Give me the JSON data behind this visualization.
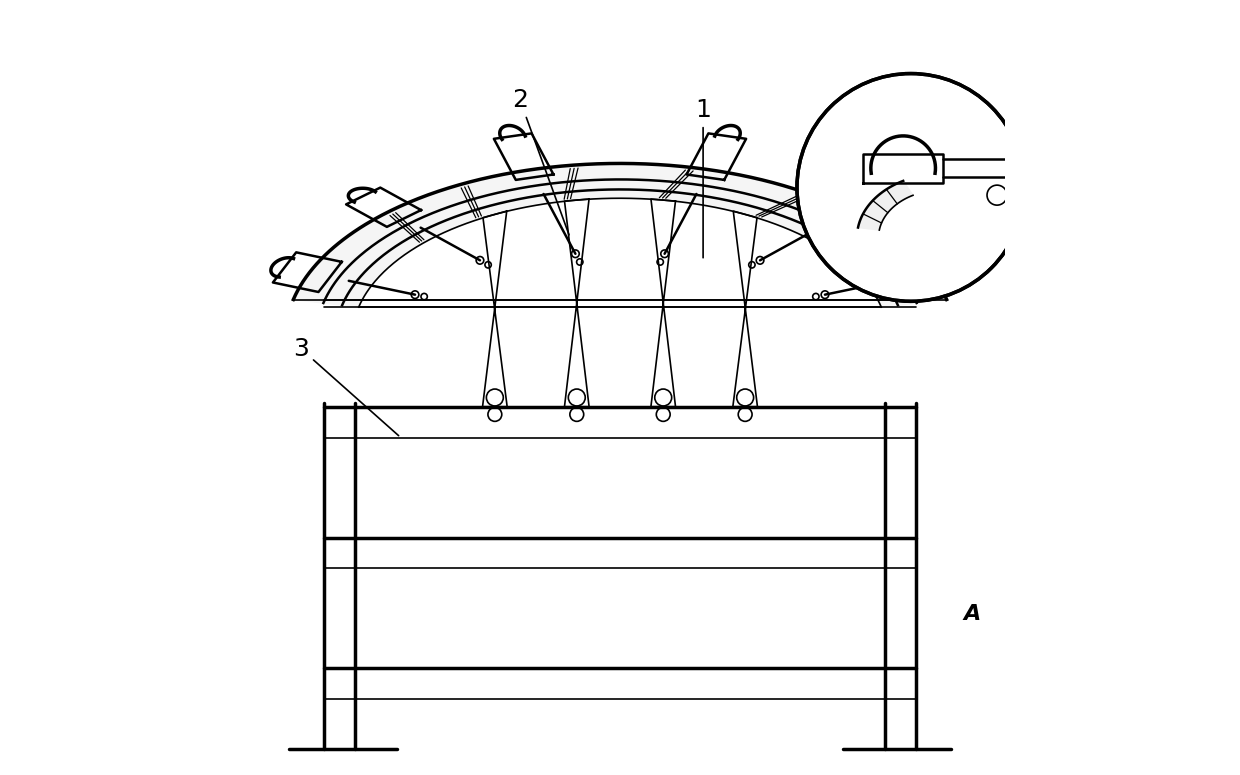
{
  "bg_color": "#ffffff",
  "line_color": "#000000",
  "figsize": [
    12.4,
    7.75
  ],
  "dpi": 100
}
